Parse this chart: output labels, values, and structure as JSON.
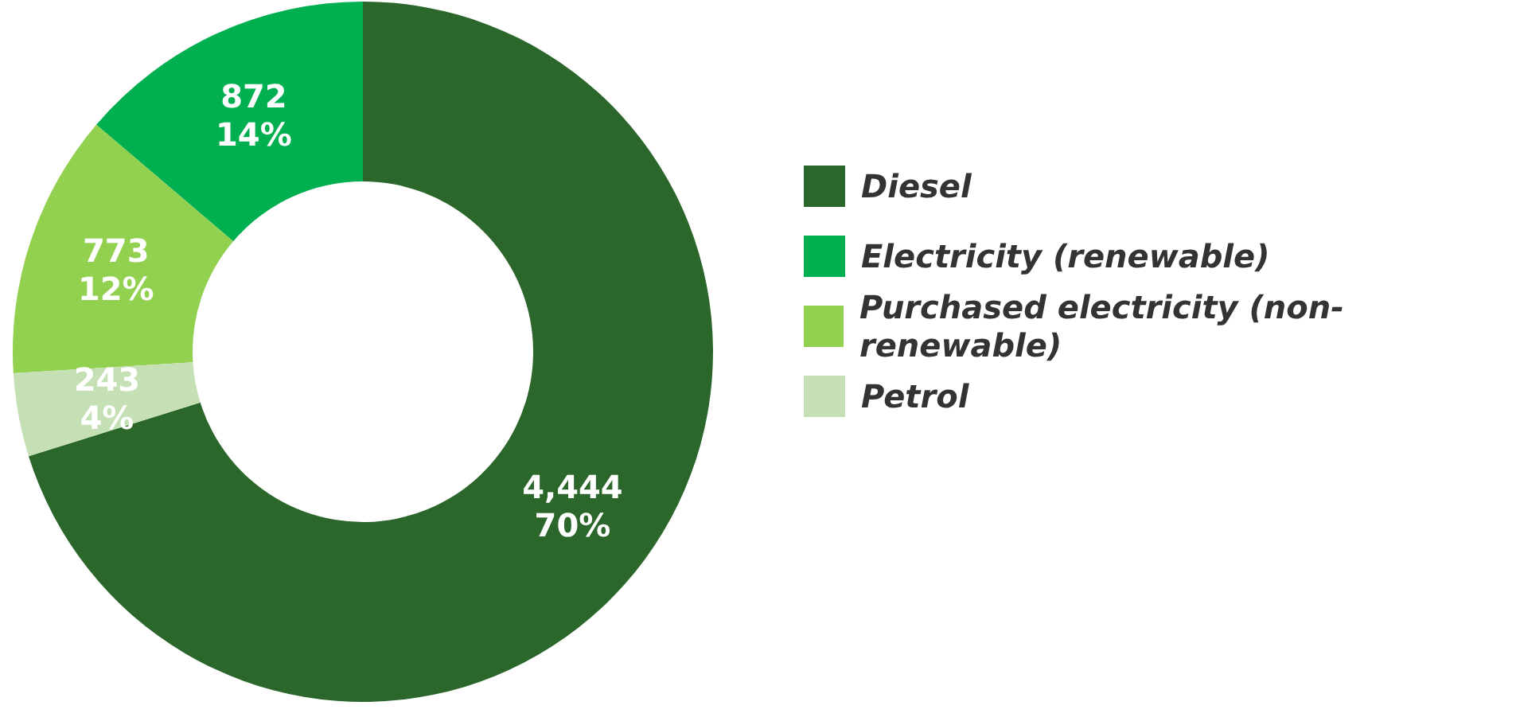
{
  "chart_data": {
    "type": "donut",
    "categories": [
      "Diesel",
      "Electricity (renewable)",
      "Purchased electricity (non-renewable)",
      "Petrol"
    ],
    "values": [
      4444,
      872,
      773,
      243
    ],
    "colors": [
      "#2b662b",
      "#00b050",
      "#92d050",
      "#c5e0b4"
    ],
    "value_labels": [
      "4,444\n70%",
      "872\n14%",
      "773\n12%",
      "243\n4%"
    ],
    "legend": "right"
  }
}
